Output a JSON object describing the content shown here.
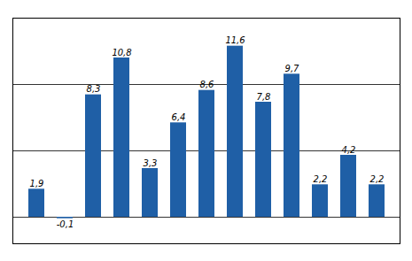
{
  "chart_data": {
    "type": "bar",
    "categories": [
      null,
      null,
      null,
      null,
      null,
      null,
      null,
      null,
      null,
      null,
      null,
      null,
      null
    ],
    "values": [
      1.9,
      -0.1,
      8.3,
      10.8,
      3.3,
      6.4,
      8.6,
      11.6,
      7.8,
      9.7,
      2.2,
      4.2,
      2.2
    ],
    "value_labels": [
      "1,9",
      "-0,1",
      "8,3",
      "10,8",
      "3,3",
      "6,4",
      "8,6",
      "11,6",
      "7,8",
      "9,7",
      "2,2",
      "4,2",
      "2,2"
    ],
    "data_labels": true,
    "color": "#1F5FA6",
    "ylim": [
      -1.8,
      13.5
    ],
    "yticks": [
      0,
      4.5,
      9.0
    ],
    "grid": true,
    "tick_labels": false
  }
}
